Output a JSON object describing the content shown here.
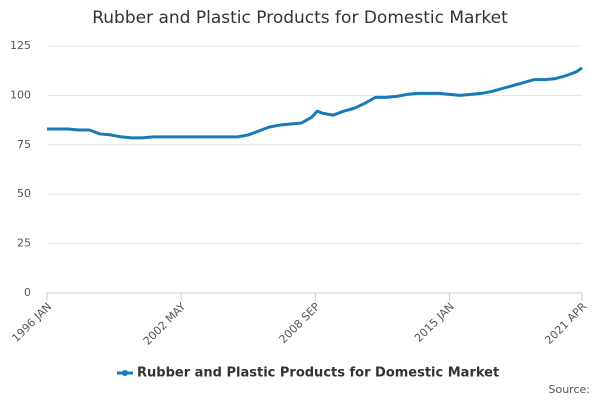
{
  "chart_data": {
    "type": "line",
    "title": "Rubber and Plastic Products for Domestic Market",
    "source": "Source:",
    "x": [
      0,
      6,
      12,
      18,
      24,
      30,
      36,
      42,
      48,
      54,
      60,
      66,
      72,
      78,
      84,
      90,
      96,
      102,
      108,
      114,
      120,
      126,
      132,
      138,
      144,
      150,
      153,
      156,
      162,
      168,
      174,
      180,
      186,
      192,
      198,
      204,
      210,
      216,
      222,
      228,
      234,
      240,
      246,
      252,
      258,
      264,
      270,
      276,
      282,
      288,
      294,
      300,
      303
    ],
    "series": [
      {
        "name": "Rubber and Plastic Products for Domestic Market",
        "color": "#1a7ab8",
        "values": [
          83,
          83,
          83,
          82.5,
          82.5,
          80.5,
          80,
          79,
          78.5,
          78.5,
          79,
          79,
          79,
          79,
          79,
          79,
          79,
          79,
          79,
          80,
          82,
          84,
          85,
          85.5,
          86,
          89,
          92,
          91,
          90,
          92,
          93.5,
          96,
          99,
          99,
          99.5,
          100.5,
          101,
          101,
          101,
          100.5,
          100,
          100.5,
          101,
          102,
          103.5,
          105,
          106.5,
          108,
          108,
          108.5,
          110,
          112,
          114
        ]
      }
    ],
    "xlim": [
      0,
      303
    ],
    "xticks": [
      {
        "value": 0,
        "label": "1996 JAN"
      },
      {
        "value": 76,
        "label": "2002 MAY"
      },
      {
        "value": 152,
        "label": "2008 SEP"
      },
      {
        "value": 228,
        "label": "2015 JAN"
      },
      {
        "value": 303,
        "label": "2021 APR"
      }
    ],
    "ylim": [
      0,
      125
    ],
    "yticks": [
      0,
      25,
      50,
      75,
      100,
      125
    ],
    "grid": true
  }
}
